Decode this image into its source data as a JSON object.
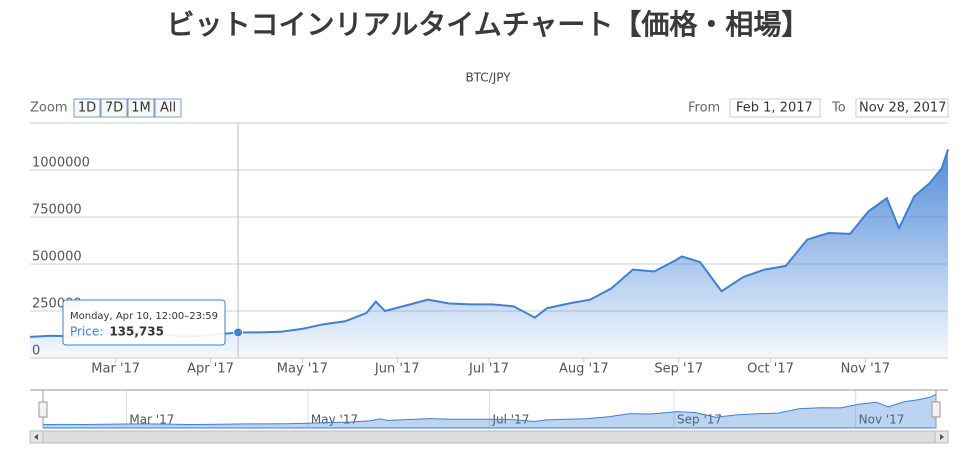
{
  "chart_data": {
    "type": "area",
    "title": "ビットコインリアルタイムチャート【価格・相場】",
    "subtitle": "BTC/JPY",
    "range_selector": {
      "label": "Zoom",
      "buttons": [
        "1D",
        "7D",
        "1M",
        "All"
      ],
      "from_label": "From",
      "from": "Feb 1, 2017",
      "to_label": "To",
      "to": "Nov 28, 2017"
    },
    "xlim": [
      "2017-02-01",
      "2017-11-28"
    ],
    "xticks": [
      {
        "value": "2017-03",
        "label": "Mar '17"
      },
      {
        "value": "2017-04",
        "label": "Apr '17"
      },
      {
        "value": "2017-05",
        "label": "May '17"
      },
      {
        "value": "2017-06",
        "label": "Jun '17"
      },
      {
        "value": "2017-07",
        "label": "Jul '17"
      },
      {
        "value": "2017-08",
        "label": "Aug '17"
      },
      {
        "value": "2017-09",
        "label": "Sep '17"
      },
      {
        "value": "2017-10",
        "label": "Oct '17"
      },
      {
        "value": "2017-11",
        "label": "Nov '17"
      }
    ],
    "ylim": [
      0,
      1250000
    ],
    "yticks": [
      0,
      250000,
      500000,
      750000,
      1000000
    ],
    "grid": true,
    "x": [
      "2017-02-01",
      "2017-02-08",
      "2017-02-15",
      "2017-02-22",
      "2017-03-01",
      "2017-03-08",
      "2017-03-15",
      "2017-03-22",
      "2017-03-29",
      "2017-04-05",
      "2017-04-10",
      "2017-04-17",
      "2017-04-24",
      "2017-05-01",
      "2017-05-08",
      "2017-05-15",
      "2017-05-22",
      "2017-05-25",
      "2017-05-28",
      "2017-06-04",
      "2017-06-11",
      "2017-06-18",
      "2017-06-25",
      "2017-07-02",
      "2017-07-09",
      "2017-07-16",
      "2017-07-20",
      "2017-07-27",
      "2017-08-03",
      "2017-08-10",
      "2017-08-17",
      "2017-08-24",
      "2017-08-31",
      "2017-09-02",
      "2017-09-08",
      "2017-09-15",
      "2017-09-22",
      "2017-09-29",
      "2017-10-06",
      "2017-10-13",
      "2017-10-20",
      "2017-10-27",
      "2017-11-02",
      "2017-11-08",
      "2017-11-12",
      "2017-11-17",
      "2017-11-22",
      "2017-11-26",
      "2017-11-28"
    ],
    "series": [
      {
        "name": "Price",
        "color": "#3f80d6",
        "values": [
          112000,
          118000,
          115000,
          125000,
          130000,
          135000,
          128000,
          115000,
          117000,
          128000,
          135735,
          136000,
          140000,
          155000,
          180000,
          195000,
          240000,
          300000,
          250000,
          280000,
          310000,
          290000,
          285000,
          285000,
          275000,
          215000,
          265000,
          290000,
          310000,
          370000,
          470000,
          460000,
          520000,
          540000,
          510000,
          355000,
          430000,
          470000,
          490000,
          630000,
          665000,
          660000,
          780000,
          850000,
          690000,
          860000,
          930000,
          1010000,
          1110000
        ]
      }
    ],
    "tooltip": {
      "header": "Monday, Apr 10, 12:00–23:59",
      "name": "Price:",
      "x": "2017-04-10",
      "value": 135735,
      "label": "135,735"
    },
    "navigator": {
      "xticks": [
        {
          "value": "2017-03",
          "label": "Mar '17"
        },
        {
          "value": "2017-05",
          "label": "May '17"
        },
        {
          "value": "2017-07",
          "label": "Jul '17"
        },
        {
          "value": "2017-09",
          "label": "Sep '17"
        },
        {
          "value": "2017-11",
          "label": "Nov '17"
        }
      ]
    }
  }
}
